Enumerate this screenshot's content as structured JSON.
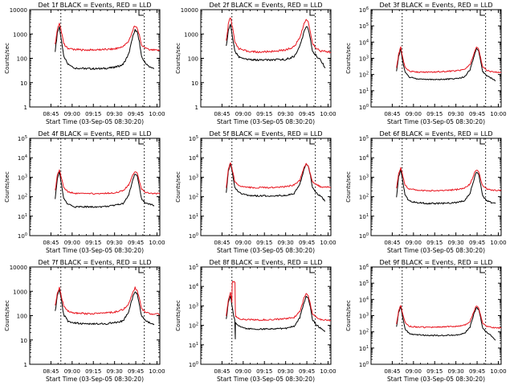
{
  "figure": {
    "ylabel": "Counts/sec",
    "xlabel": "Start Time (03-Sep-05 08:30:20)",
    "x_ticks": [
      "08:45",
      "09:00",
      "09:15",
      "09:30",
      "09:45",
      "10:00"
    ],
    "dotted_vlines_time": [
      "08:52",
      "09:51"
    ],
    "colors": {
      "events": "#000000",
      "lld": "#e8141e",
      "frame": "#000000",
      "vline": "#000000"
    }
  },
  "chart_data": [
    {
      "type": "line",
      "title": "Det 1f BLACK = Events, RED = LLD",
      "xlabel": "Start Time (03-Sep-05 08:30:20)",
      "ylabel": "Counts/sec",
      "yscale": "log",
      "ylim": [
        1,
        10000
      ],
      "y_ticks": [
        "1",
        "10",
        "100",
        "1000",
        "10000"
      ],
      "x_range_min": [
        0,
        92
      ],
      "series": [
        {
          "name": "Events",
          "x": [
            18,
            19.5,
            21,
            22.5,
            24,
            27,
            32,
            40,
            50,
            60,
            66,
            70,
            73,
            74.5,
            76,
            77.5,
            79,
            82,
            85,
            88
          ],
          "values": [
            200,
            1000,
            2000,
            500,
            120,
            60,
            40,
            38,
            37,
            42,
            55,
            150,
            800,
            1500,
            1200,
            500,
            120,
            60,
            45,
            38
          ]
        },
        {
          "name": "LLD",
          "x": [
            18,
            19.5,
            21,
            22.5,
            24,
            27,
            32,
            40,
            50,
            60,
            66,
            70,
            73,
            74.5,
            76,
            77.5,
            79,
            82,
            85,
            92
          ],
          "values": [
            400,
            1500,
            3000,
            1200,
            400,
            260,
            230,
            220,
            225,
            240,
            300,
            500,
            1500,
            2200,
            1800,
            900,
            350,
            250,
            220,
            210
          ]
        }
      ]
    },
    {
      "type": "line",
      "title": "Det 2f BLACK = Events, RED = LLD",
      "xlabel": "Start Time (03-Sep-05 08:30:20)",
      "ylabel": "Counts/sec",
      "yscale": "log",
      "ylim": [
        1,
        10000
      ],
      "y_ticks": [
        "1",
        "10",
        "100",
        "1000",
        "10000"
      ],
      "x_range_min": [
        0,
        92
      ],
      "series": [
        {
          "name": "Events",
          "x": [
            18,
            19.5,
            21,
            22.5,
            24,
            27,
            32,
            40,
            50,
            60,
            66,
            70,
            73,
            74.5,
            76,
            77.5,
            79,
            82,
            85,
            88
          ],
          "values": [
            300,
            1500,
            2500,
            700,
            200,
            110,
            90,
            85,
            85,
            90,
            120,
            300,
            1200,
            2000,
            1600,
            600,
            200,
            120,
            80,
            40
          ]
        },
        {
          "name": "LLD",
          "x": [
            18,
            19.5,
            21,
            22.5,
            24,
            27,
            32,
            40,
            50,
            60,
            66,
            70,
            73,
            74.5,
            76,
            77.5,
            79,
            82,
            85,
            92
          ],
          "values": [
            500,
            2500,
            5000,
            1800,
            500,
            250,
            200,
            180,
            190,
            220,
            300,
            700,
            2500,
            4000,
            3000,
            1200,
            400,
            250,
            200,
            180
          ]
        }
      ]
    },
    {
      "type": "line",
      "title": "Det 3f BLACK = Events, RED = LLD",
      "xlabel": "Start Time (03-Sep-05 08:30:20)",
      "ylabel": "Counts/sec",
      "yscale": "log",
      "ylim": [
        1,
        1000000
      ],
      "y_ticks": [
        "10^0",
        "10^1",
        "10^2",
        "10^3",
        "10^4",
        "10^5",
        "10^6"
      ],
      "x_range_min": [
        0,
        92
      ],
      "series": [
        {
          "name": "Events",
          "x": [
            18,
            19.5,
            21,
            22.5,
            24,
            27,
            32,
            40,
            50,
            60,
            66,
            70,
            73,
            74.5,
            76,
            77.5,
            79,
            82,
            85,
            88
          ],
          "values": [
            150,
            1200,
            4000,
            600,
            150,
            70,
            55,
            50,
            50,
            55,
            70,
            200,
            1500,
            4000,
            3000,
            700,
            150,
            80,
            60,
            40
          ]
        },
        {
          "name": "LLD",
          "x": [
            18,
            19.5,
            21,
            22.5,
            24,
            27,
            32,
            40,
            50,
            60,
            66,
            70,
            73,
            74.5,
            76,
            77.5,
            79,
            82,
            85,
            92
          ],
          "values": [
            250,
            1800,
            5000,
            1000,
            300,
            160,
            140,
            140,
            150,
            170,
            200,
            400,
            2000,
            5000,
            4000,
            1000,
            300,
            180,
            150,
            130
          ]
        }
      ]
    },
    {
      "type": "line",
      "title": "Det 4f BLACK = Events, RED = LLD",
      "xlabel": "Start Time (03-Sep-05 08:30:20)",
      "ylabel": "Counts/sec",
      "yscale": "log",
      "ylim": [
        1,
        100000
      ],
      "y_ticks": [
        "10^0",
        "10^1",
        "10^2",
        "10^3",
        "10^4",
        "10^5"
      ],
      "x_range_min": [
        0,
        92
      ],
      "series": [
        {
          "name": "Events",
          "x": [
            18,
            19.5,
            21,
            22.5,
            24,
            27,
            32,
            40,
            50,
            60,
            66,
            70,
            73,
            74.5,
            76,
            77.5,
            79,
            82,
            85,
            88
          ],
          "values": [
            80,
            800,
            2000,
            400,
            80,
            40,
            30,
            30,
            30,
            35,
            45,
            120,
            800,
            1500,
            1200,
            300,
            80,
            45,
            40,
            35
          ]
        },
        {
          "name": "LLD",
          "x": [
            18,
            19.5,
            21,
            22.5,
            24,
            27,
            32,
            40,
            50,
            60,
            66,
            70,
            73,
            74.5,
            76,
            77.5,
            79,
            82,
            85,
            92
          ],
          "values": [
            200,
            1200,
            2500,
            900,
            300,
            180,
            150,
            140,
            145,
            160,
            200,
            400,
            1400,
            2000,
            1600,
            600,
            250,
            170,
            150,
            140
          ]
        }
      ]
    },
    {
      "type": "line",
      "title": "Det 5f BLACK = Events, RED = LLD",
      "xlabel": "Start Time (03-Sep-05 08:30:20)",
      "ylabel": "Counts/sec",
      "yscale": "log",
      "ylim": [
        1,
        100000
      ],
      "y_ticks": [
        "10^0",
        "10^1",
        "10^2",
        "10^3",
        "10^4",
        "10^5"
      ],
      "x_range_min": [
        0,
        92
      ],
      "series": [
        {
          "name": "Events",
          "x": [
            18,
            19.5,
            21,
            22.5,
            24,
            27,
            32,
            40,
            50,
            60,
            66,
            70,
            73,
            74.5,
            76,
            77.5,
            79,
            82,
            85,
            88
          ],
          "values": [
            150,
            2000,
            5000,
            1500,
            300,
            160,
            120,
            110,
            110,
            120,
            150,
            400,
            2500,
            4500,
            3500,
            1200,
            300,
            150,
            100,
            60
          ]
        },
        {
          "name": "LLD",
          "x": [
            18,
            19.5,
            21,
            22.5,
            24,
            27,
            32,
            40,
            50,
            60,
            66,
            70,
            73,
            74.5,
            76,
            77.5,
            79,
            82,
            85,
            92
          ],
          "values": [
            300,
            2500,
            6000,
            2000,
            600,
            350,
            300,
            290,
            300,
            330,
            400,
            700,
            3000,
            5000,
            4000,
            1500,
            600,
            400,
            320,
            300
          ]
        }
      ]
    },
    {
      "type": "line",
      "title": "Det 6f BLACK = Events, RED = LLD",
      "xlabel": "Start Time (03-Sep-05 08:30:20)",
      "ylabel": "Counts/sec",
      "yscale": "log",
      "ylim": [
        1,
        100000
      ],
      "y_ticks": [
        "10^0",
        "10^1",
        "10^2",
        "10^3",
        "10^4",
        "10^5"
      ],
      "x_range_min": [
        0,
        92
      ],
      "series": [
        {
          "name": "Events",
          "x": [
            18,
            19.5,
            21,
            22.5,
            24,
            27,
            32,
            40,
            50,
            60,
            66,
            70,
            73,
            74.5,
            76,
            77.5,
            79,
            82,
            85,
            88
          ],
          "values": [
            100,
            1000,
            2500,
            600,
            120,
            60,
            50,
            45,
            45,
            50,
            60,
            150,
            900,
            1800,
            1500,
            400,
            110,
            60,
            50,
            45
          ]
        },
        {
          "name": "LLD",
          "x": [
            18,
            19.5,
            21,
            22.5,
            24,
            27,
            32,
            40,
            50,
            60,
            66,
            70,
            73,
            74.5,
            76,
            77.5,
            79,
            82,
            85,
            92
          ],
          "values": [
            250,
            1500,
            3000,
            1200,
            400,
            250,
            220,
            200,
            210,
            230,
            260,
            450,
            1500,
            2500,
            2000,
            800,
            350,
            250,
            220,
            200
          ]
        }
      ]
    },
    {
      "type": "line",
      "title": "Det 7f BLACK = Events, RED = LLD",
      "xlabel": "Start Time (03-Sep-05 08:30:20)",
      "ylabel": "Counts/sec",
      "yscale": "log",
      "ylim": [
        1,
        10000
      ],
      "y_ticks": [
        "1",
        "10",
        "100",
        "1000",
        "10000"
      ],
      "x_range_min": [
        0,
        92
      ],
      "series": [
        {
          "name": "Events",
          "x": [
            18,
            19.5,
            21,
            22.5,
            24,
            27,
            32,
            40,
            50,
            60,
            66,
            70,
            73,
            74.5,
            76,
            77.5,
            79,
            82,
            85,
            88
          ],
          "values": [
            150,
            600,
            1200,
            400,
            110,
            60,
            50,
            45,
            45,
            50,
            60,
            150,
            600,
            1000,
            800,
            300,
            100,
            60,
            50,
            45
          ]
        },
        {
          "name": "LLD",
          "x": [
            18,
            19.5,
            21,
            22.5,
            24,
            27,
            32,
            40,
            50,
            60,
            66,
            70,
            73,
            74.5,
            76,
            77.5,
            79,
            82,
            85,
            92
          ],
          "values": [
            250,
            800,
            1500,
            600,
            250,
            150,
            130,
            120,
            125,
            140,
            180,
            300,
            900,
            1400,
            1100,
            500,
            200,
            140,
            120,
            110
          ]
        }
      ]
    },
    {
      "type": "line",
      "title": "Det 8f BLACK = Events, RED = LLD",
      "xlabel": "Start Time (03-Sep-05 08:30:20)",
      "ylabel": "Counts/sec",
      "yscale": "log",
      "ylim": [
        1,
        100000
      ],
      "y_ticks": [
        "10^0",
        "10^1",
        "10^2",
        "10^3",
        "10^4",
        "10^5"
      ],
      "x_range_min": [
        0,
        92
      ],
      "series": [
        {
          "name": "Events",
          "x": [
            18,
            19.5,
            21,
            22.5,
            23.2,
            24,
            24.4,
            24.5,
            27,
            32,
            40,
            50,
            60,
            66,
            70,
            73,
            74.5,
            76,
            77.5,
            79,
            82,
            85,
            88
          ],
          "values": [
            200,
            1500,
            3500,
            700,
            300,
            200,
            20,
            150,
            90,
            70,
            65,
            65,
            70,
            90,
            250,
            1500,
            3000,
            2500,
            800,
            200,
            100,
            70,
            50
          ]
        },
        {
          "name": "LLD",
          "x": [
            18,
            19.5,
            21,
            22,
            22.2,
            22.5,
            24.2,
            24.4,
            24.6,
            27,
            32,
            40,
            50,
            60,
            66,
            70,
            73,
            74.5,
            76,
            77.5,
            79,
            82,
            85,
            92
          ],
          "values": [
            300,
            2000,
            5000,
            1500,
            15000,
            18000,
            16000,
            600,
            300,
            220,
            200,
            190,
            200,
            220,
            260,
            500,
            2500,
            4500,
            3500,
            1200,
            400,
            250,
            200,
            180
          ]
        }
      ]
    },
    {
      "type": "line",
      "title": "Det 9f BLACK = Events, RED = LLD",
      "xlabel": "Start Time (03-Sep-05 08:30:20)",
      "ylabel": "Counts/sec",
      "yscale": "log",
      "ylim": [
        1,
        1000000
      ],
      "y_ticks": [
        "10^0",
        "10^1",
        "10^2",
        "10^3",
        "10^4",
        "10^5",
        "10^6"
      ],
      "x_range_min": [
        0,
        92
      ],
      "series": [
        {
          "name": "Events",
          "x": [
            18,
            19.5,
            21,
            22.5,
            24,
            27,
            32,
            40,
            50,
            60,
            66,
            70,
            73,
            74.5,
            76,
            77.5,
            79,
            82,
            85,
            88
          ],
          "values": [
            200,
            1500,
            3500,
            700,
            150,
            80,
            65,
            60,
            60,
            65,
            80,
            200,
            1500,
            3000,
            2500,
            700,
            160,
            90,
            60,
            30
          ]
        },
        {
          "name": "LLD",
          "x": [
            18,
            19.5,
            21,
            22.5,
            24,
            27,
            32,
            40,
            50,
            60,
            66,
            70,
            73,
            74.5,
            76,
            77.5,
            79,
            82,
            85,
            92
          ],
          "values": [
            300,
            2000,
            4500,
            1200,
            400,
            220,
            200,
            190,
            200,
            220,
            260,
            450,
            2000,
            4000,
            3200,
            1000,
            350,
            220,
            190,
            170
          ]
        }
      ]
    }
  ]
}
